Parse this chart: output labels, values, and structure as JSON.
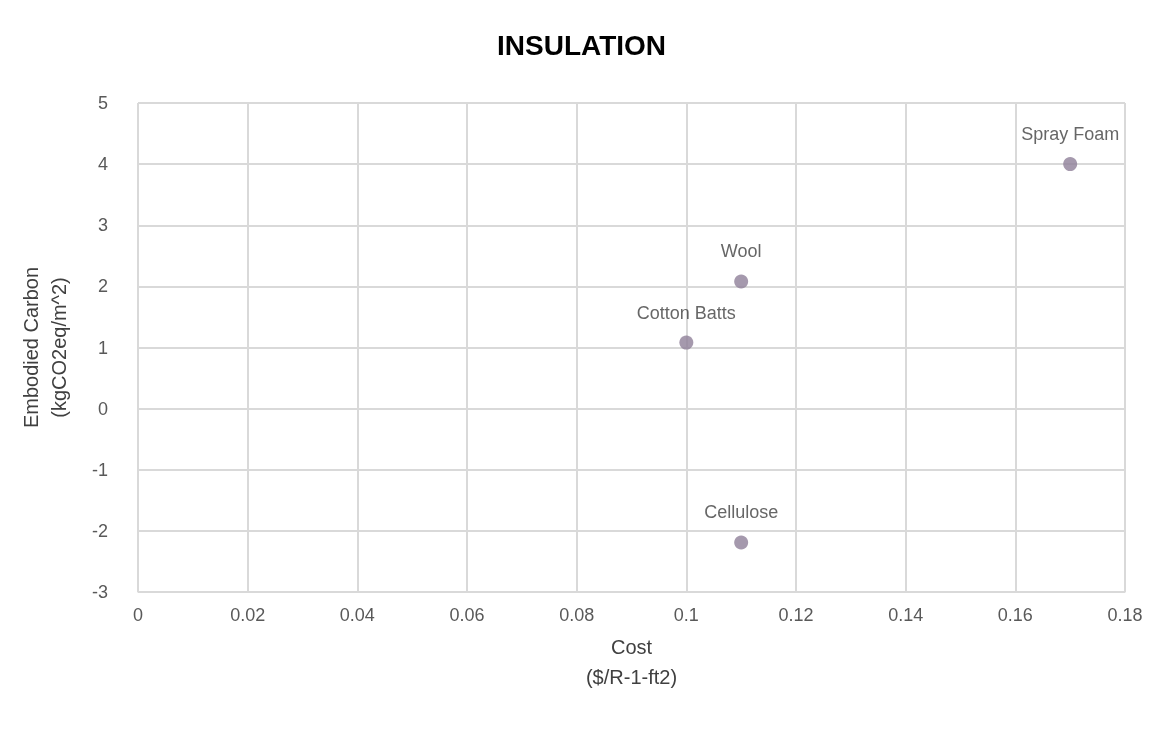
{
  "chart_data": {
    "type": "scatter",
    "title": "INSULATION",
    "xlabel": "Cost\n($/R-1-ft2)",
    "ylabel": "Embodied Carbon\n(kgCO2eq/m^2)",
    "x": [
      0.17,
      0.11,
      0.1,
      0.11
    ],
    "values": [
      4.0,
      2.08,
      1.08,
      -2.19
    ],
    "value_labels": [
      "Spray Foam",
      "Wool",
      "Cotton Batts",
      "Cellulose"
    ],
    "color": "#8e7f99",
    "marker": "circle",
    "xlim": [
      0,
      0.18
    ],
    "xticks": [
      0,
      0.02,
      0.04,
      0.06,
      0.08,
      0.1,
      0.12,
      0.14,
      0.16,
      0.18
    ],
    "ylim": [
      -3,
      5
    ],
    "yticks": [
      -3,
      -2,
      -1,
      0,
      1,
      2,
      3,
      4,
      5
    ],
    "grid": true
  }
}
